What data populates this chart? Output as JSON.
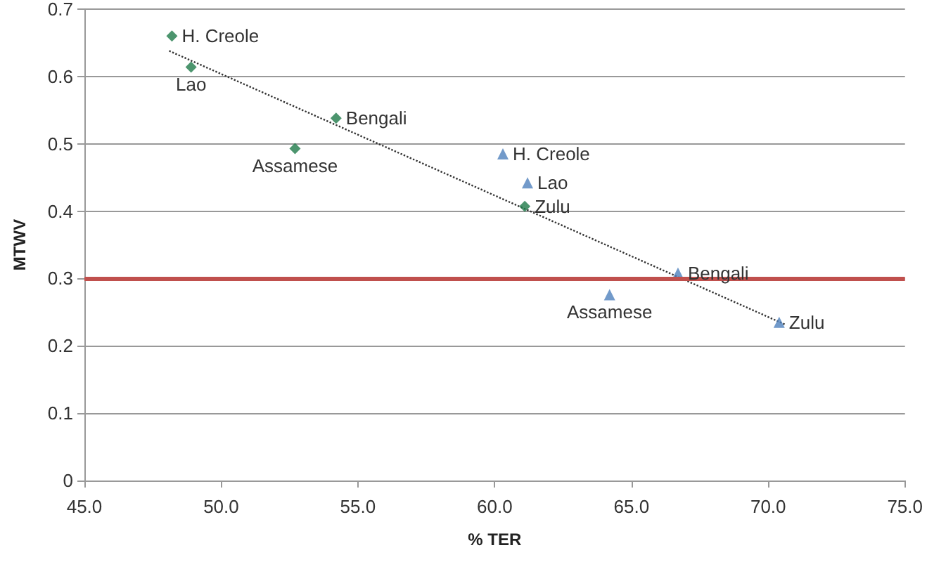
{
  "chart_data": {
    "type": "scatter",
    "xlabel": "% TER",
    "ylabel": "MTWV",
    "xlim": [
      45,
      75
    ],
    "xticks": [
      {
        "value": 45,
        "label": "45.0"
      },
      {
        "value": 50,
        "label": "50.0"
      },
      {
        "value": 55,
        "label": "55.0"
      },
      {
        "value": 60,
        "label": "60.0"
      },
      {
        "value": 65,
        "label": "65.0"
      },
      {
        "value": 70,
        "label": "70.0"
      },
      {
        "value": 75,
        "label": "75.0"
      }
    ],
    "ylim": [
      0,
      0.7
    ],
    "yticks": [
      0,
      0.1,
      0.2,
      0.3,
      0.4,
      0.5,
      0.6,
      0.7
    ],
    "grid": "y",
    "series": [
      {
        "marker": "diamond",
        "color": "#1f7a4a",
        "x": [
          48.2,
          48.9,
          54.2,
          52.7,
          61.1
        ],
        "values": [
          0.66,
          0.614,
          0.538,
          0.493,
          0.407
        ]
      },
      {
        "marker": "triangle",
        "color": "#4f81bd",
        "x": [
          60.3,
          61.2,
          66.7,
          64.2,
          70.4
        ],
        "values": [
          0.485,
          0.442,
          0.308,
          0.276,
          0.235
        ]
      },
      {
        "type": "line",
        "marker": "none",
        "line_style": "dotted",
        "color": "#333333",
        "x": [
          48.1,
          70.6
        ],
        "values": [
          0.638,
          0.232
        ]
      }
    ],
    "ref_lines": [
      {
        "axis": "y",
        "value": 0.3,
        "color": "#c0504d"
      }
    ],
    "annotations": [
      {
        "text": "H. Creole",
        "x": 48.2,
        "y": 0.66
      },
      {
        "text": "Lao",
        "x": 48.9,
        "y": 0.614
      },
      {
        "text": "Bengali",
        "x": 54.2,
        "y": 0.538
      },
      {
        "text": "Assamese",
        "x": 52.7,
        "y": 0.493
      },
      {
        "text": "Zulu",
        "x": 61.1,
        "y": 0.407
      },
      {
        "text": "H. Creole",
        "x": 60.3,
        "y": 0.485
      },
      {
        "text": "Lao",
        "x": 61.2,
        "y": 0.442
      },
      {
        "text": "Bengali",
        "x": 66.7,
        "y": 0.308
      },
      {
        "text": "Assamese",
        "x": 64.2,
        "y": 0.276
      },
      {
        "text": "Zulu",
        "x": 70.4,
        "y": 0.235
      }
    ]
  }
}
